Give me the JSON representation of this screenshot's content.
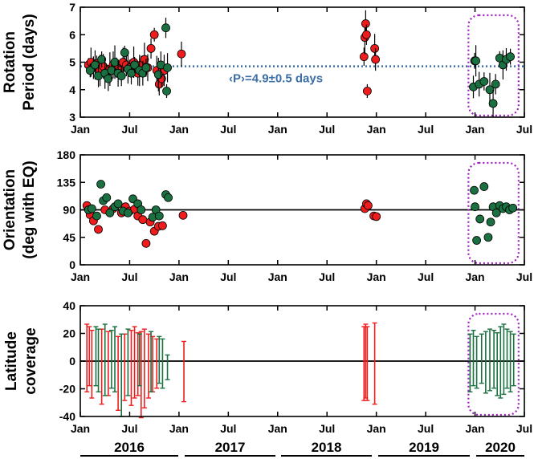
{
  "colors": {
    "red": "#ee1c1c",
    "green": "#1a7040",
    "mean_line": "#3b6da6",
    "box": "#a020c0",
    "axis": "#000000"
  },
  "x_tick_labels": [
    "Jan",
    "Jul",
    "Jan",
    "Jul",
    "Jan",
    "Jul",
    "Jan",
    "Jul",
    "Jan",
    "Jul"
  ],
  "years": [
    "2016",
    "2017",
    "2018",
    "2019",
    "2020"
  ],
  "chart_data": [
    {
      "type": "scatter",
      "ylabel": [
        "Rotation",
        "Period (days)"
      ],
      "ylim": [
        3,
        7
      ],
      "yticks": [
        "3",
        "4",
        "5",
        "6",
        "7"
      ],
      "xlim_months": [
        0,
        54
      ],
      "annotation": "‹P›=4.9±0.5 days",
      "mean_line": 4.85,
      "series": [
        {
          "color": "red",
          "points": [
            {
              "x": 1.0,
              "y": 4.9
            },
            {
              "x": 1.3,
              "y": 5.0
            },
            {
              "x": 1.6,
              "y": 4.8
            },
            {
              "x": 2.0,
              "y": 4.95
            },
            {
              "x": 2.4,
              "y": 4.7
            },
            {
              "x": 2.8,
              "y": 4.85
            },
            {
              "x": 3.2,
              "y": 4.6
            },
            {
              "x": 3.6,
              "y": 4.75
            },
            {
              "x": 4.0,
              "y": 4.9
            },
            {
              "x": 4.4,
              "y": 4.8
            },
            {
              "x": 4.8,
              "y": 4.7
            },
            {
              "x": 5.2,
              "y": 5.0
            },
            {
              "x": 5.6,
              "y": 4.9
            },
            {
              "x": 6.0,
              "y": 4.8
            },
            {
              "x": 6.5,
              "y": 5.0
            },
            {
              "x": 7.0,
              "y": 4.6
            },
            {
              "x": 7.4,
              "y": 4.9
            },
            {
              "x": 7.8,
              "y": 5.1
            },
            {
              "x": 8.2,
              "y": 4.8
            },
            {
              "x": 8.6,
              "y": 5.5
            },
            {
              "x": 9.0,
              "y": 6.0
            },
            {
              "x": 9.3,
              "y": 4.7
            },
            {
              "x": 9.6,
              "y": 4.2
            },
            {
              "x": 9.9,
              "y": 4.4
            },
            {
              "x": 10.2,
              "y": 4.7
            },
            {
              "x": 12.3,
              "y": 5.3
            },
            {
              "x": 34.5,
              "y": 5.2
            },
            {
              "x": 34.6,
              "y": 5.9
            },
            {
              "x": 34.7,
              "y": 6.4
            },
            {
              "x": 34.8,
              "y": 6.0
            },
            {
              "x": 34.9,
              "y": 3.95
            },
            {
              "x": 35.8,
              "y": 5.5
            },
            {
              "x": 35.9,
              "y": 5.1
            }
          ]
        },
        {
          "color": "green",
          "points": [
            {
              "x": 1.2,
              "y": 4.7
            },
            {
              "x": 1.8,
              "y": 4.9
            },
            {
              "x": 2.2,
              "y": 4.5
            },
            {
              "x": 2.6,
              "y": 5.1
            },
            {
              "x": 3.0,
              "y": 4.6
            },
            {
              "x": 3.4,
              "y": 4.4
            },
            {
              "x": 3.8,
              "y": 4.7
            },
            {
              "x": 4.2,
              "y": 5.0
            },
            {
              "x": 4.6,
              "y": 4.6
            },
            {
              "x": 5.0,
              "y": 4.5
            },
            {
              "x": 5.4,
              "y": 5.35
            },
            {
              "x": 5.8,
              "y": 4.75
            },
            {
              "x": 6.2,
              "y": 4.6
            },
            {
              "x": 6.6,
              "y": 4.9
            },
            {
              "x": 7.2,
              "y": 4.7
            },
            {
              "x": 7.6,
              "y": 4.6
            },
            {
              "x": 8.0,
              "y": 4.8
            },
            {
              "x": 9.5,
              "y": 4.55
            },
            {
              "x": 9.8,
              "y": 4.9
            },
            {
              "x": 10.4,
              "y": 6.25
            },
            {
              "x": 10.5,
              "y": 3.95
            },
            {
              "x": 10.6,
              "y": 4.8
            },
            {
              "x": 47.8,
              "y": 4.1
            },
            {
              "x": 47.95,
              "y": 5.05
            },
            {
              "x": 48.1,
              "y": 5.05
            },
            {
              "x": 48.5,
              "y": 4.2
            },
            {
              "x": 49.1,
              "y": 4.3
            },
            {
              "x": 49.8,
              "y": 4.0
            },
            {
              "x": 50.2,
              "y": 3.5
            },
            {
              "x": 50.5,
              "y": 4.2
            },
            {
              "x": 51.0,
              "y": 5.15
            },
            {
              "x": 51.4,
              "y": 4.9
            },
            {
              "x": 51.8,
              "y": 5.1
            },
            {
              "x": 52.3,
              "y": 5.2
            }
          ]
        }
      ]
    },
    {
      "type": "scatter",
      "ylabel": [
        "Orientation",
        "(deg with EQ)"
      ],
      "ylim": [
        0,
        180
      ],
      "yticks": [
        "0",
        "45",
        "90",
        "135",
        "180"
      ],
      "xlim_months": [
        0,
        54
      ],
      "ref_line": 90,
      "series": [
        {
          "color": "red",
          "points": [
            {
              "x": 0.8,
              "y": 97
            },
            {
              "x": 1.2,
              "y": 82
            },
            {
              "x": 1.6,
              "y": 72
            },
            {
              "x": 2.2,
              "y": 58
            },
            {
              "x": 3.0,
              "y": 90
            },
            {
              "x": 4.0,
              "y": 92
            },
            {
              "x": 5.0,
              "y": 85
            },
            {
              "x": 5.5,
              "y": 95
            },
            {
              "x": 6.0,
              "y": 88
            },
            {
              "x": 6.6,
              "y": 91
            },
            {
              "x": 7.0,
              "y": 80
            },
            {
              "x": 7.6,
              "y": 74
            },
            {
              "x": 8.0,
              "y": 35
            },
            {
              "x": 8.5,
              "y": 70
            },
            {
              "x": 9.0,
              "y": 55
            },
            {
              "x": 9.5,
              "y": 63
            },
            {
              "x": 10.0,
              "y": 64
            },
            {
              "x": 12.5,
              "y": 81
            },
            {
              "x": 34.6,
              "y": 92
            },
            {
              "x": 34.8,
              "y": 100
            },
            {
              "x": 35.0,
              "y": 97
            },
            {
              "x": 35.7,
              "y": 80
            },
            {
              "x": 36.0,
              "y": 79
            }
          ]
        },
        {
          "color": "green",
          "points": [
            {
              "x": 1.0,
              "y": 90
            },
            {
              "x": 1.4,
              "y": 92
            },
            {
              "x": 2.0,
              "y": 80
            },
            {
              "x": 2.5,
              "y": 132
            },
            {
              "x": 2.8,
              "y": 105
            },
            {
              "x": 3.2,
              "y": 110
            },
            {
              "x": 3.6,
              "y": 85
            },
            {
              "x": 4.2,
              "y": 95
            },
            {
              "x": 4.6,
              "y": 100
            },
            {
              "x": 5.2,
              "y": 88
            },
            {
              "x": 5.8,
              "y": 85
            },
            {
              "x": 6.4,
              "y": 108
            },
            {
              "x": 7.0,
              "y": 100
            },
            {
              "x": 7.4,
              "y": 90
            },
            {
              "x": 8.8,
              "y": 78
            },
            {
              "x": 9.2,
              "y": 90
            },
            {
              "x": 9.6,
              "y": 80
            },
            {
              "x": 10.4,
              "y": 115
            },
            {
              "x": 10.7,
              "y": 110
            },
            {
              "x": 47.9,
              "y": 122
            },
            {
              "x": 48.0,
              "y": 95
            },
            {
              "x": 48.2,
              "y": 40
            },
            {
              "x": 48.6,
              "y": 75
            },
            {
              "x": 49.1,
              "y": 128
            },
            {
              "x": 49.6,
              "y": 45
            },
            {
              "x": 49.9,
              "y": 70
            },
            {
              "x": 50.2,
              "y": 95
            },
            {
              "x": 50.6,
              "y": 85
            },
            {
              "x": 51.0,
              "y": 97
            },
            {
              "x": 51.4,
              "y": 92
            },
            {
              "x": 51.8,
              "y": 95
            },
            {
              "x": 52.2,
              "y": 90
            },
            {
              "x": 52.6,
              "y": 93
            }
          ]
        }
      ]
    },
    {
      "type": "errorbar",
      "ylabel": [
        "Latitude",
        "coverage"
      ],
      "ylim": [
        -45,
        45
      ],
      "yticks": [
        "-40",
        "-20",
        "0",
        "20",
        "40"
      ],
      "xlim_months": [
        0,
        54
      ],
      "ref_line": 0,
      "series": [
        {
          "color": "red",
          "ranges": [
            {
              "x": 0.8,
              "lo": -25,
              "hi": 30
            },
            {
              "x": 1.1,
              "lo": -20,
              "hi": 28
            },
            {
              "x": 1.4,
              "lo": -30,
              "hi": 25
            },
            {
              "x": 2.6,
              "lo": -35,
              "hi": 26
            },
            {
              "x": 3.4,
              "lo": -28,
              "hi": 24
            },
            {
              "x": 4.6,
              "lo": -40,
              "hi": 20
            },
            {
              "x": 5.4,
              "lo": -32,
              "hi": 22
            },
            {
              "x": 6.2,
              "lo": -36,
              "hi": 25
            },
            {
              "x": 6.6,
              "lo": -30,
              "hi": 28
            },
            {
              "x": 7.0,
              "lo": -28,
              "hi": 23
            },
            {
              "x": 7.4,
              "lo": -46,
              "hi": 24
            },
            {
              "x": 7.8,
              "lo": -38,
              "hi": 26
            },
            {
              "x": 8.3,
              "lo": -30,
              "hi": 22
            },
            {
              "x": 8.8,
              "lo": -25,
              "hi": 20
            },
            {
              "x": 9.3,
              "lo": -22,
              "hi": 18
            },
            {
              "x": 12.6,
              "lo": -33,
              "hi": 16
            },
            {
              "x": 34.5,
              "lo": -32,
              "hi": 28
            },
            {
              "x": 34.7,
              "lo": -30,
              "hi": 30
            },
            {
              "x": 34.9,
              "lo": -32,
              "hi": 28
            },
            {
              "x": 35.8,
              "lo": -35,
              "hi": 31
            }
          ]
        },
        {
          "color": "green",
          "ranges": [
            {
              "x": 1.9,
              "lo": -20,
              "hi": 28
            },
            {
              "x": 2.2,
              "lo": -25,
              "hi": 26
            },
            {
              "x": 3.0,
              "lo": -28,
              "hi": 30
            },
            {
              "x": 3.8,
              "lo": -22,
              "hi": 25
            },
            {
              "x": 4.2,
              "lo": -25,
              "hi": 28
            },
            {
              "x": 5.0,
              "lo": -45,
              "hi": 22
            },
            {
              "x": 5.8,
              "lo": -28,
              "hi": 26
            },
            {
              "x": 7.2,
              "lo": -20,
              "hi": 22
            },
            {
              "x": 8.6,
              "lo": -25,
              "hi": 24
            },
            {
              "x": 9.6,
              "lo": -18,
              "hi": 20
            },
            {
              "x": 10.0,
              "lo": -22,
              "hi": 18
            },
            {
              "x": 10.6,
              "lo": -15,
              "hi": 5
            },
            {
              "x": 47.4,
              "lo": -25,
              "hi": 22
            },
            {
              "x": 47.8,
              "lo": -20,
              "hi": 25
            },
            {
              "x": 48.2,
              "lo": -22,
              "hi": 20
            },
            {
              "x": 48.8,
              "lo": -18,
              "hi": 22
            },
            {
              "x": 49.3,
              "lo": -26,
              "hi": 24
            },
            {
              "x": 49.8,
              "lo": -24,
              "hi": 26
            },
            {
              "x": 50.3,
              "lo": -22,
              "hi": 25
            },
            {
              "x": 50.7,
              "lo": -28,
              "hi": 23
            },
            {
              "x": 51.1,
              "lo": -30,
              "hi": 28
            },
            {
              "x": 51.5,
              "lo": -27,
              "hi": 30
            },
            {
              "x": 51.9,
              "lo": -22,
              "hi": 26
            },
            {
              "x": 52.3,
              "lo": -25,
              "hi": 24
            },
            {
              "x": 52.7,
              "lo": -20,
              "hi": 22
            }
          ]
        }
      ]
    }
  ]
}
